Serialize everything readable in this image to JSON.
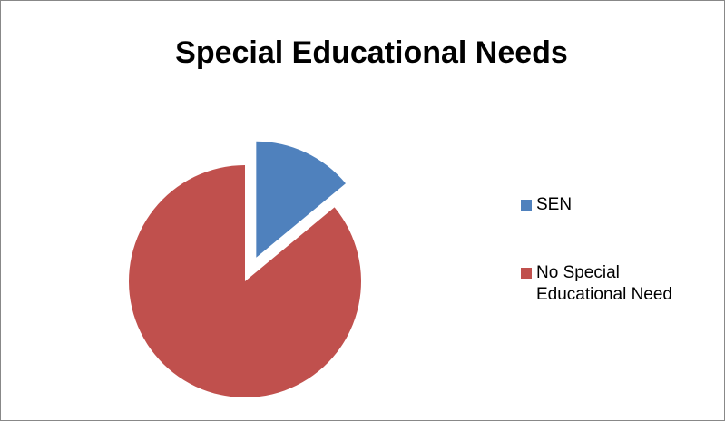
{
  "chart_data": {
    "type": "pie",
    "title": "Special Educational Needs",
    "categories": [
      "SEN",
      "No Special Educational Need"
    ],
    "values": [
      14,
      86
    ],
    "colors": [
      "#4F81BD",
      "#C0504D"
    ],
    "exploded": [
      "SEN"
    ],
    "start_angle_deg": 0,
    "legend_position": "right"
  }
}
